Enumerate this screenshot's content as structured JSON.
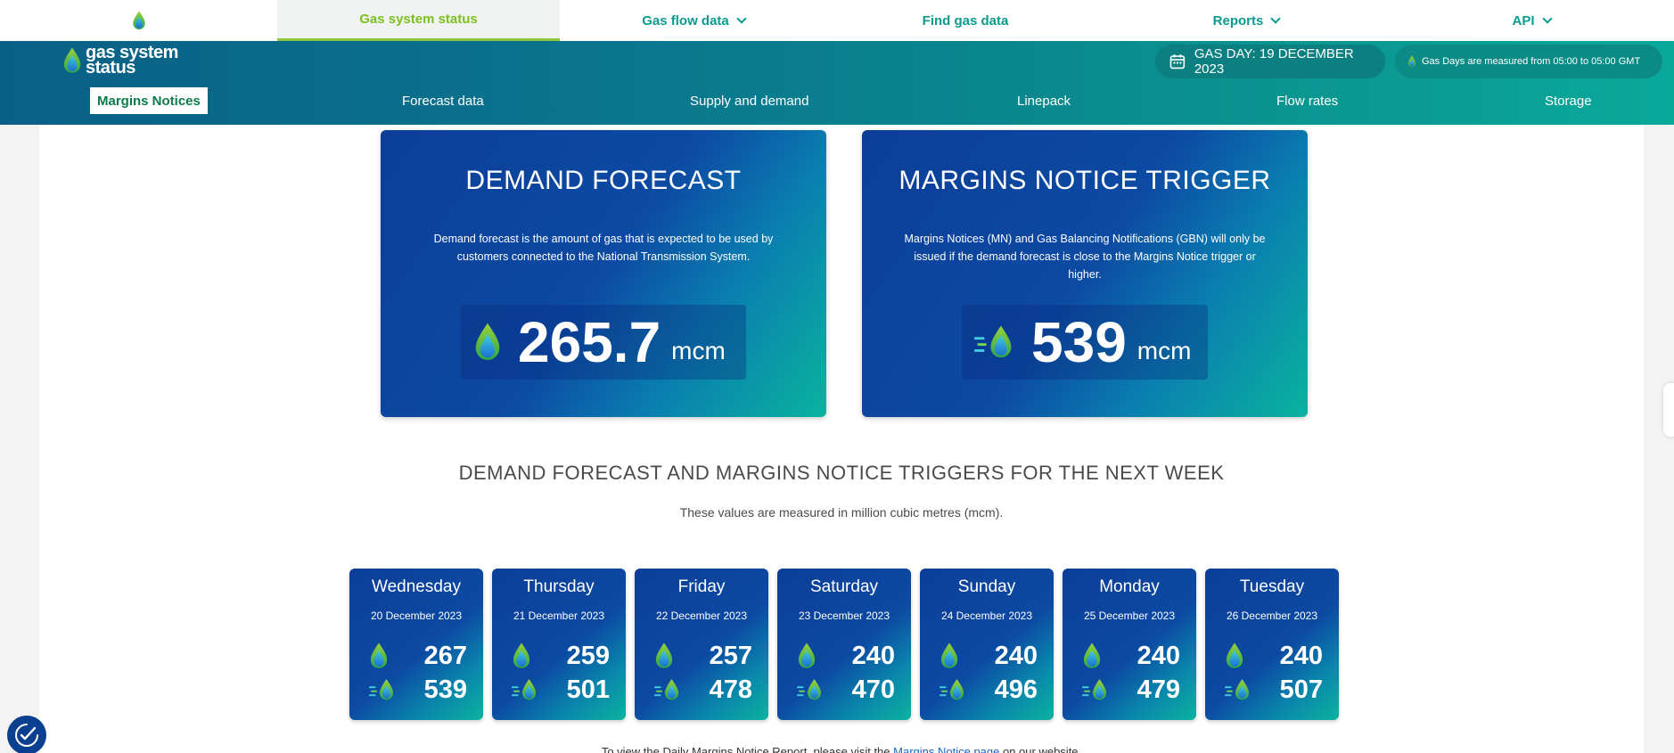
{
  "topnav": {
    "items": [
      {
        "label": "Gas system status",
        "active": true,
        "dropdown": false
      },
      {
        "label": "Gas flow data",
        "active": false,
        "dropdown": true
      },
      {
        "label": "Find gas data",
        "active": false,
        "dropdown": false
      },
      {
        "label": "Reports",
        "active": false,
        "dropdown": true
      },
      {
        "label": "API",
        "active": false,
        "dropdown": true
      }
    ]
  },
  "header": {
    "brand_line1": "gas system",
    "brand_line2": "status",
    "gas_day": "GAS DAY: 19 DECEMBER 2023",
    "gas_day_note": "Gas Days are measured from 05:00 to 05:00 GMT"
  },
  "subnav": {
    "items": [
      "Margins Notices",
      "Forecast data",
      "Supply and demand",
      "Linepack",
      "Flow rates",
      "Storage"
    ]
  },
  "demand_card": {
    "title": "DEMAND FORECAST",
    "description": "Demand forecast is the amount of gas that is expected to be used by customers connected to the National Transmission System.",
    "value": "265.7",
    "unit": "mcm"
  },
  "trigger_card": {
    "title": "MARGINS NOTICE TRIGGER",
    "description": "Margins Notices (MN) and Gas Balancing Notifications (GBN) will only be issued if the demand forecast is close to the Margins Notice trigger or higher.",
    "value": "539",
    "unit": "mcm"
  },
  "week": {
    "title": "DEMAND FORECAST AND MARGINS NOTICE TRIGGERS FOR THE NEXT WEEK",
    "subtitle": "These values are measured in million cubic metres (mcm).",
    "days": [
      {
        "name": "Wednesday",
        "date": "20 December 2023",
        "demand": "267",
        "trigger": "539"
      },
      {
        "name": "Thursday",
        "date": "21 December 2023",
        "demand": "259",
        "trigger": "501"
      },
      {
        "name": "Friday",
        "date": "22 December 2023",
        "demand": "257",
        "trigger": "478"
      },
      {
        "name": "Saturday",
        "date": "23 December 2023",
        "demand": "240",
        "trigger": "470"
      },
      {
        "name": "Sunday",
        "date": "24 December 2023",
        "demand": "240",
        "trigger": "496"
      },
      {
        "name": "Monday",
        "date": "25 December 2023",
        "demand": "240",
        "trigger": "479"
      },
      {
        "name": "Tuesday",
        "date": "26 December 2023",
        "demand": "240",
        "trigger": "507"
      }
    ]
  },
  "footnote": {
    "before": "To view the Daily Margins Notice Report, please visit the ",
    "link": "Margins Notice page",
    "after": " on our website."
  },
  "icons": {
    "flame": "flame-icon",
    "trigger": "flame-speed-icon",
    "calendar": "calendar-icon",
    "accessibility": "accessibility-icon"
  },
  "colors": {
    "accent_green": "#8cc63f",
    "teal": "#0b9a8f",
    "card_blue": "#0c4aa3"
  }
}
